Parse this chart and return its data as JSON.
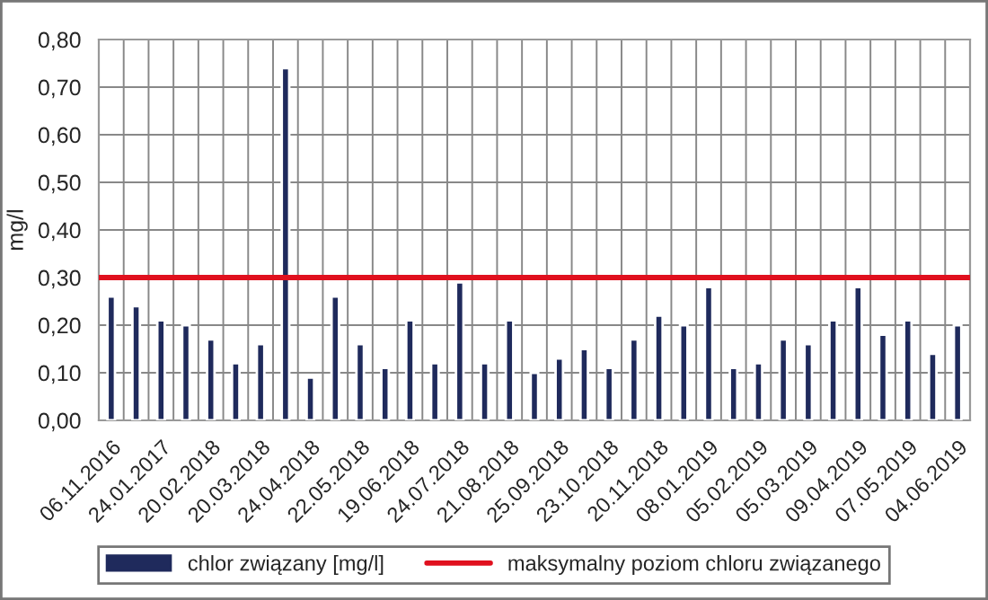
{
  "chart_data": {
    "type": "bar",
    "ylabel": "mg/l",
    "categories": [
      "06.11.2016",
      null,
      "24.01.2017",
      null,
      "20.02.2018",
      null,
      "20.03.2018",
      null,
      "24.04.2018",
      null,
      "22.05.2018",
      null,
      "19.06.2018",
      null,
      "24.07.2018",
      null,
      "21.08.2018",
      null,
      "25.09.2018",
      null,
      "23.10.2018",
      null,
      "20.11.2018",
      null,
      "08.01.2019",
      null,
      "05.02.2019",
      null,
      "05.03.2019",
      null,
      "09.04.2019",
      null,
      "07.05.2019",
      null,
      "04.06.2019"
    ],
    "series": [
      {
        "name": "chlor związany [mg/l]",
        "color": "#1f2a5c",
        "values": [
          0.26,
          0.24,
          0.21,
          0.2,
          0.17,
          0.12,
          0.16,
          0.74,
          0.09,
          0.26,
          0.16,
          0.11,
          0.21,
          0.12,
          0.29,
          0.12,
          0.21,
          0.1,
          0.13,
          0.15,
          0.11,
          0.17,
          0.22,
          0.2,
          0.28,
          0.11,
          0.12,
          0.17,
          0.16,
          0.21,
          0.28,
          0.18,
          0.21,
          0.14,
          0.2
        ]
      }
    ],
    "ref_lines": [
      {
        "axis": "y",
        "value": 0.3,
        "label": "maksymalny poziom chloru związanego",
        "color": "#e0101e",
        "line_style": "solid"
      }
    ],
    "ylim": [
      0,
      0.8
    ],
    "yticks": [
      {
        "value": 0,
        "label": "0,00"
      },
      {
        "value": 0.1,
        "label": "0,10"
      },
      {
        "value": 0.2,
        "label": "0,20"
      },
      {
        "value": 0.3,
        "label": "0,30"
      },
      {
        "value": 0.4,
        "label": "0,40"
      },
      {
        "value": 0.5,
        "label": "0,50"
      },
      {
        "value": 0.6,
        "label": "0,60"
      },
      {
        "value": 0.7,
        "label": "0,70"
      },
      {
        "value": 0.8,
        "label": "0,80"
      }
    ],
    "grid": true,
    "legend": "bottom"
  }
}
